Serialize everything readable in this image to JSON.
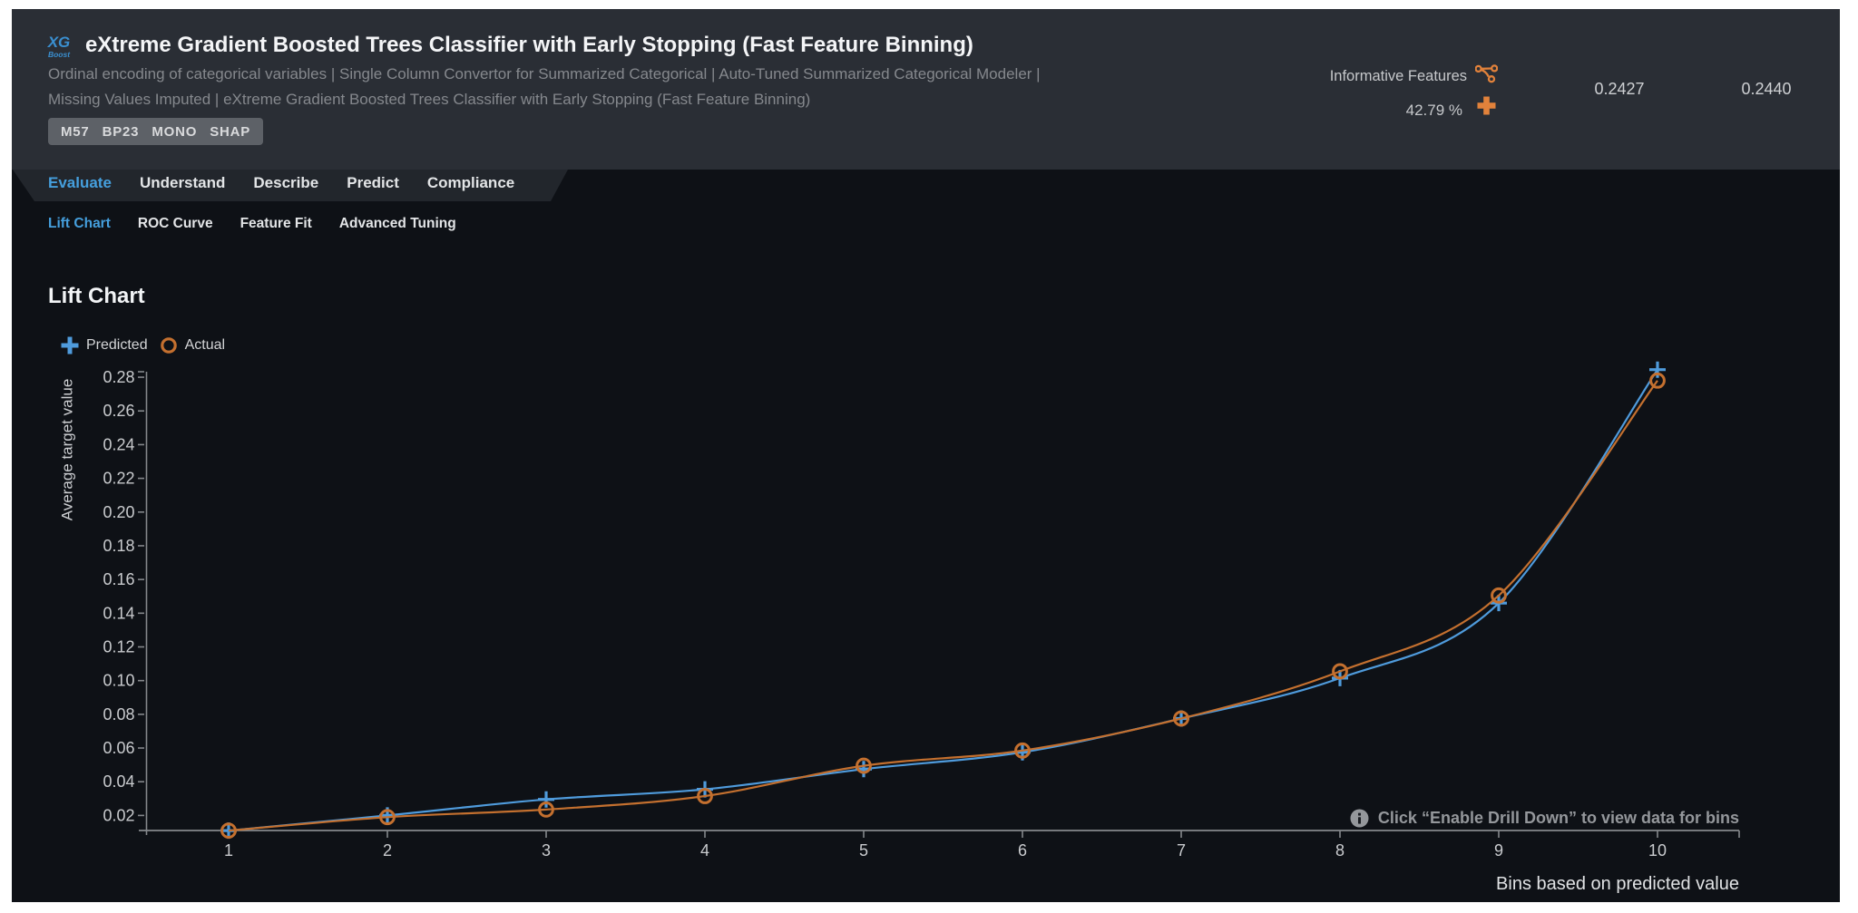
{
  "header": {
    "logo": {
      "top": "XG",
      "bottom": "Boost"
    },
    "title": "eXtreme Gradient Boosted Trees Classifier with Early Stopping (Fast Feature Binning)",
    "subtitle_lines": [
      "Ordinal encoding of categorical variables | Single Column Convertor for Summarized Categorical | Auto-Tuned Summarized Categorical Modeler |",
      "Missing Values Imputed | eXtreme Gradient Boosted Trees Classifier with Early Stopping (Fast Feature Binning)"
    ],
    "badges": [
      "M57",
      "BP23",
      "MONO",
      "SHAP"
    ],
    "feature_list": {
      "label": "Informative Features",
      "sample_pct": "42.79 %"
    },
    "metrics": {
      "value1": "0.2427",
      "value2": "0.2440"
    }
  },
  "tabs": [
    {
      "label": "Evaluate",
      "active": true
    },
    {
      "label": "Understand",
      "active": false
    },
    {
      "label": "Describe",
      "active": false
    },
    {
      "label": "Predict",
      "active": false
    },
    {
      "label": "Compliance",
      "active": false
    }
  ],
  "subtabs": [
    {
      "label": "Lift Chart",
      "active": true
    },
    {
      "label": "ROC Curve",
      "active": false
    },
    {
      "label": "Feature Fit",
      "active": false
    },
    {
      "label": "Advanced Tuning",
      "active": false
    }
  ],
  "main": {
    "heading": "Lift Chart",
    "note_text": "Click “Enable Drill Down” to view data for bins"
  },
  "chart_data": {
    "type": "line",
    "title": "Lift Chart",
    "xlabel": "Bins based on predicted value",
    "ylabel": "Average target value",
    "x": [
      1,
      2,
      3,
      4,
      5,
      6,
      7,
      8,
      9,
      10
    ],
    "series": [
      {
        "name": "Predicted",
        "marker": "plus",
        "color": "#4f9bdc",
        "values": [
          0.011,
          0.02,
          0.0295,
          0.0355,
          0.0475,
          0.0575,
          0.0775,
          0.1015,
          0.146,
          0.2845
        ]
      },
      {
        "name": "Actual",
        "marker": "circle",
        "color": "#c4702f",
        "values": [
          0.011,
          0.019,
          0.0235,
          0.0315,
          0.0495,
          0.0585,
          0.0775,
          0.1055,
          0.1505,
          0.278
        ]
      }
    ],
    "yticks": [
      0.02,
      0.04,
      0.06,
      0.08,
      0.1,
      0.12,
      0.14,
      0.16,
      0.18,
      0.2,
      0.22,
      0.24,
      0.26,
      0.28
    ],
    "ylim": [
      0.0107,
      0.2885
    ],
    "grid": false,
    "legend_position": "top-left"
  },
  "colors": {
    "accent_blue": "#459fdd",
    "accent_orange": "#e2823b",
    "series_predicted": "#4f9bdc",
    "series_actual": "#c4702f",
    "axis": "#85888c",
    "tick_text": "#c9cbce",
    "axis_title": "#e0e2e4"
  }
}
